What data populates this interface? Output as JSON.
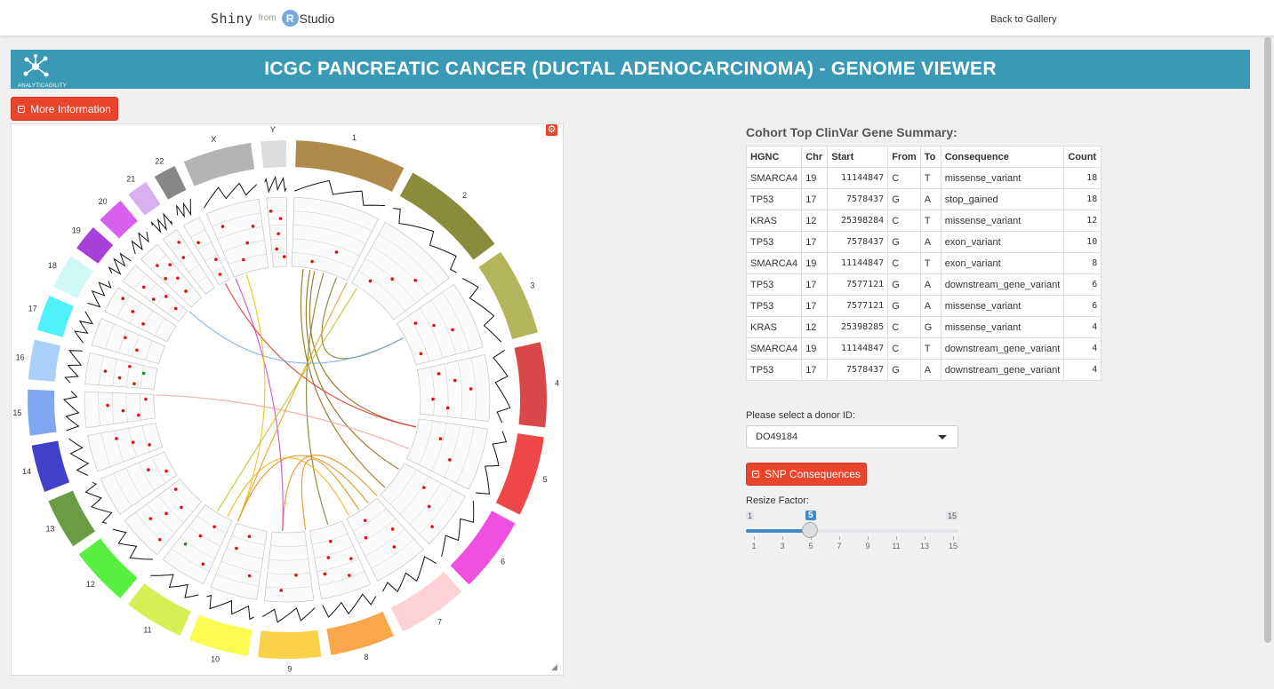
{
  "nav": {
    "brand_shiny": "Shiny",
    "brand_from": "from",
    "brand_r": "R",
    "brand_studio": "Studio",
    "back_link": "Back to Gallery"
  },
  "header": {
    "title": "ICGC PANCREATIC CANCER (DUCTAL ADENOCARCINOMA) - GENOME VIEWER",
    "logo_text": "ANALYTICAGILITY"
  },
  "buttons": {
    "more_info": "More Information",
    "snp": "SNP Consequences"
  },
  "plot": {
    "chromosome_labels": [
      "1",
      "2",
      "3",
      "4",
      "5",
      "6",
      "7",
      "8",
      "9",
      "10",
      "11",
      "12",
      "13",
      "14",
      "15",
      "16",
      "17",
      "18",
      "19",
      "20",
      "21",
      "22",
      "X",
      "Y"
    ],
    "chromosome_colors": [
      "#b08a48",
      "#8b8b3c",
      "#b4b45a",
      "#d94848",
      "#f04848",
      "#f050e0",
      "#ffd2d8",
      "#f8a84a",
      "#fad24a",
      "#fcfc50",
      "#d4f054",
      "#58f040",
      "#6a9c44",
      "#4040c8",
      "#80a8f0",
      "#a8d0f8",
      "#50f0f8",
      "#d0f8f8",
      "#a840d8",
      "#d860f0",
      "#d8b0f0",
      "#888888",
      "#b4b4b4",
      "#dcdcdc"
    ]
  },
  "table": {
    "title": "Cohort Top ClinVar Gene Summary:",
    "headers": [
      "HGNC",
      "Chr",
      "Start",
      "From",
      "To",
      "Consequence",
      "Count"
    ],
    "rows": [
      [
        "SMARCA4",
        "19",
        "11144847",
        "C",
        "T",
        "missense_variant",
        "18"
      ],
      [
        "TP53",
        "17",
        "7578437",
        "G",
        "A",
        "stop_gained",
        "18"
      ],
      [
        "KRAS",
        "12",
        "25398284",
        "C",
        "T",
        "missense_variant",
        "12"
      ],
      [
        "TP53",
        "17",
        "7578437",
        "G",
        "A",
        "exon_variant",
        "10"
      ],
      [
        "SMARCA4",
        "19",
        "11144847",
        "C",
        "T",
        "exon_variant",
        "8"
      ],
      [
        "TP53",
        "17",
        "7577121",
        "G",
        "A",
        "downstream_gene_variant",
        "6"
      ],
      [
        "TP53",
        "17",
        "7577121",
        "G",
        "A",
        "missense_variant",
        "6"
      ],
      [
        "KRAS",
        "12",
        "25398285",
        "C",
        "G",
        "missense_variant",
        "4"
      ],
      [
        "SMARCA4",
        "19",
        "11144847",
        "C",
        "T",
        "downstream_gene_variant",
        "4"
      ],
      [
        "TP53",
        "17",
        "7578437",
        "G",
        "A",
        "downstream_gene_variant",
        "4"
      ]
    ]
  },
  "donor": {
    "label": "Please select a donor ID:",
    "value": "DO49184"
  },
  "slider": {
    "label": "Resize Factor:",
    "min": "1",
    "max": "15",
    "value": "5",
    "value_num": 5,
    "min_num": 1,
    "max_num": 15,
    "ticks": [
      "1",
      "3",
      "5",
      "7",
      "9",
      "11",
      "13",
      "15"
    ]
  }
}
